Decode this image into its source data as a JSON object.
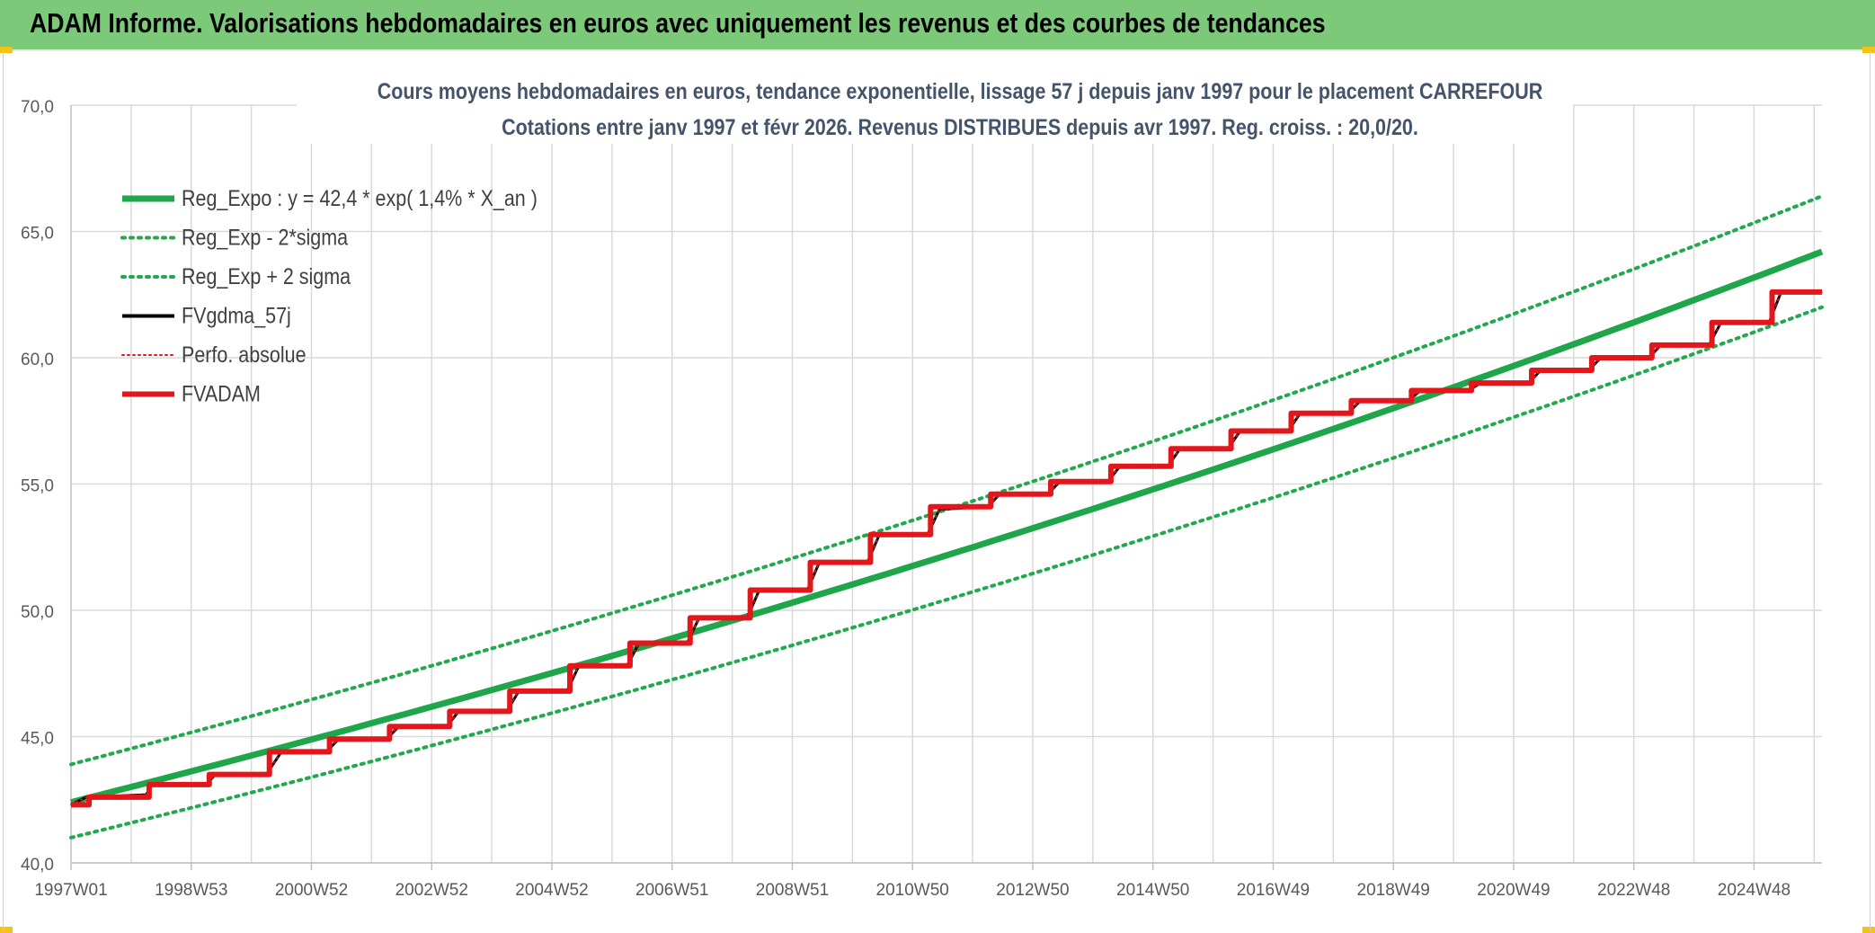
{
  "header": {
    "title": "ADAM Informe. Valorisations hebdomadaires en euros avec uniquement les revenus et des courbes de tendances"
  },
  "colors": {
    "header_bg": "#7dc97a",
    "reg_green": "#1fa64a",
    "band_green": "#22a84f",
    "red": "#e3161b",
    "black": "#000000",
    "grid": "#d9d9d9",
    "accent_yellow": "#f3c316"
  },
  "chart_data": {
    "type": "line",
    "title_line1": "Cours moyens hebdomadaires en euros, tendance exponentielle, lissage 57 j depuis janv 1997 pour le placement CARREFOUR",
    "title_line2": "Cotations entre janv 1997 et févr 2026. Revenus DISTRIBUES depuis avr 1997. Reg. croiss. : 20,0/20.",
    "xlabel": "",
    "ylabel": "",
    "ylim": [
      40,
      70
    ],
    "x_range_years": [
      1997.0,
      2026.13
    ],
    "y_ticks": [
      "40,0",
      "45,0",
      "50,0",
      "55,0",
      "60,0",
      "65,0",
      "70,0"
    ],
    "y_tick_values": [
      40,
      45,
      50,
      55,
      60,
      65,
      70
    ],
    "x_ticks": [
      {
        "label": "1997W01",
        "year": 1997.0
      },
      {
        "label": "1998W53",
        "year": 1999.0
      },
      {
        "label": "2000W52",
        "year": 2001.0
      },
      {
        "label": "2002W52",
        "year": 2003.0
      },
      {
        "label": "2004W52",
        "year": 2005.0
      },
      {
        "label": "2006W51",
        "year": 2007.0
      },
      {
        "label": "2008W51",
        "year": 2009.0
      },
      {
        "label": "2010W50",
        "year": 2011.0
      },
      {
        "label": "2012W50",
        "year": 2013.0
      },
      {
        "label": "2014W50",
        "year": 2015.0
      },
      {
        "label": "2016W49",
        "year": 2017.0
      },
      {
        "label": "2018W49",
        "year": 2019.0
      },
      {
        "label": "2020W49",
        "year": 2021.0
      },
      {
        "label": "2022W48",
        "year": 2023.0
      },
      {
        "label": "2024W48",
        "year": 2025.0
      }
    ],
    "grid": true,
    "legend_position": "top-left",
    "series": [
      {
        "name": "Reg_Expo : y = 42,4 * exp( 1,4% *  X_an )",
        "style": "solid-thick",
        "color": "#1fa64a",
        "points": [
          [
            1997.0,
            42.4
          ],
          [
            2026.13,
            64.2
          ]
        ]
      },
      {
        "name": "Reg_Exp - 2*sigma",
        "style": "dotted",
        "color": "#22a84f",
        "points": [
          [
            1997.0,
            41.0
          ],
          [
            2026.13,
            62.0
          ]
        ]
      },
      {
        "name": "Reg_Exp + 2 sigma",
        "style": "dotted",
        "color": "#22a84f",
        "points": [
          [
            1997.0,
            43.9
          ],
          [
            2026.13,
            66.4
          ]
        ]
      },
      {
        "name": "FVgdma_57j",
        "style": "solid-thin",
        "color": "#000000",
        "points": [
          [
            1997.0,
            42.3
          ],
          [
            1997.25,
            42.6
          ],
          [
            1998.25,
            42.7
          ],
          [
            1998.35,
            43.1
          ],
          [
            1999.25,
            43.1
          ],
          [
            1999.4,
            43.5
          ],
          [
            2000.25,
            43.5
          ],
          [
            2000.5,
            44.4
          ],
          [
            2001.25,
            44.4
          ],
          [
            2001.45,
            44.9
          ],
          [
            2002.25,
            44.9
          ],
          [
            2002.45,
            45.4
          ],
          [
            2003.25,
            45.4
          ],
          [
            2003.45,
            46.0
          ],
          [
            2004.25,
            46.0
          ],
          [
            2004.45,
            46.8
          ],
          [
            2005.25,
            46.8
          ],
          [
            2005.45,
            47.8
          ],
          [
            2006.25,
            47.8
          ],
          [
            2006.45,
            48.7
          ],
          [
            2007.25,
            48.7
          ],
          [
            2007.45,
            49.7
          ],
          [
            2008.25,
            49.7
          ],
          [
            2008.45,
            50.8
          ],
          [
            2009.25,
            50.8
          ],
          [
            2009.45,
            51.9
          ],
          [
            2010.25,
            51.9
          ],
          [
            2010.45,
            53.0
          ],
          [
            2011.25,
            53.0
          ],
          [
            2011.45,
            54.0
          ],
          [
            2012.25,
            54.1
          ],
          [
            2012.45,
            54.6
          ],
          [
            2013.25,
            54.6
          ],
          [
            2013.45,
            55.1
          ],
          [
            2014.25,
            55.1
          ],
          [
            2014.45,
            55.7
          ],
          [
            2015.25,
            55.7
          ],
          [
            2015.45,
            56.4
          ],
          [
            2016.25,
            56.4
          ],
          [
            2016.45,
            57.1
          ],
          [
            2017.25,
            57.1
          ],
          [
            2017.45,
            57.8
          ],
          [
            2018.25,
            57.8
          ],
          [
            2018.45,
            58.3
          ],
          [
            2019.25,
            58.3
          ],
          [
            2019.45,
            58.7
          ],
          [
            2020.25,
            58.7
          ],
          [
            2020.45,
            59.0
          ],
          [
            2021.25,
            59.0
          ],
          [
            2021.45,
            59.5
          ],
          [
            2022.25,
            59.5
          ],
          [
            2022.45,
            60.0
          ],
          [
            2023.25,
            60.0
          ],
          [
            2023.45,
            60.5
          ],
          [
            2024.25,
            60.5
          ],
          [
            2024.45,
            61.4
          ],
          [
            2025.25,
            61.4
          ],
          [
            2025.45,
            62.6
          ],
          [
            2026.13,
            62.6
          ]
        ]
      },
      {
        "name": "Perfo. absolue",
        "style": "dotted-thin",
        "color": "#e3161b",
        "points": [
          [
            1997.0,
            42.3
          ],
          [
            1997.25,
            42.6
          ],
          [
            1998.25,
            42.7
          ],
          [
            1998.35,
            43.1
          ],
          [
            1999.25,
            43.1
          ],
          [
            1999.4,
            43.5
          ],
          [
            2000.25,
            43.5
          ],
          [
            2000.5,
            44.4
          ],
          [
            2001.25,
            44.4
          ],
          [
            2001.45,
            44.9
          ],
          [
            2002.25,
            44.9
          ],
          [
            2002.45,
            45.4
          ],
          [
            2003.25,
            45.4
          ],
          [
            2003.45,
            46.0
          ],
          [
            2004.25,
            46.0
          ],
          [
            2004.45,
            46.8
          ],
          [
            2005.25,
            46.8
          ],
          [
            2005.45,
            47.8
          ],
          [
            2006.25,
            47.8
          ],
          [
            2006.45,
            48.7
          ],
          [
            2007.25,
            48.7
          ],
          [
            2007.45,
            49.7
          ],
          [
            2008.25,
            49.7
          ],
          [
            2008.45,
            50.8
          ],
          [
            2009.25,
            50.8
          ],
          [
            2009.45,
            51.9
          ],
          [
            2010.25,
            51.9
          ],
          [
            2010.45,
            53.0
          ],
          [
            2011.25,
            53.0
          ],
          [
            2011.45,
            54.0
          ],
          [
            2012.25,
            54.1
          ],
          [
            2012.45,
            54.6
          ],
          [
            2013.25,
            54.6
          ],
          [
            2013.45,
            55.1
          ],
          [
            2014.25,
            55.1
          ],
          [
            2014.45,
            55.7
          ],
          [
            2015.25,
            55.7
          ],
          [
            2015.45,
            56.4
          ],
          [
            2016.25,
            56.4
          ],
          [
            2016.45,
            57.1
          ],
          [
            2017.25,
            57.1
          ],
          [
            2017.45,
            57.8
          ],
          [
            2018.25,
            57.8
          ],
          [
            2018.45,
            58.3
          ],
          [
            2019.25,
            58.3
          ],
          [
            2019.45,
            58.7
          ],
          [
            2020.25,
            58.7
          ],
          [
            2020.45,
            59.0
          ],
          [
            2021.25,
            59.0
          ],
          [
            2021.45,
            59.5
          ],
          [
            2022.25,
            59.5
          ],
          [
            2022.45,
            60.0
          ],
          [
            2023.25,
            60.0
          ],
          [
            2023.45,
            60.5
          ],
          [
            2024.25,
            60.5
          ],
          [
            2024.45,
            61.4
          ],
          [
            2025.25,
            61.4
          ],
          [
            2025.45,
            62.6
          ],
          [
            2026.13,
            62.6
          ]
        ]
      },
      {
        "name": "FVADAM",
        "style": "step-thick",
        "color": "#e3161b",
        "points": [
          [
            1997.0,
            42.3
          ],
          [
            1997.3,
            42.3
          ],
          [
            1997.3,
            42.6
          ],
          [
            1998.3,
            42.6
          ],
          [
            1998.3,
            43.1
          ],
          [
            1999.3,
            43.1
          ],
          [
            1999.3,
            43.5
          ],
          [
            2000.3,
            43.5
          ],
          [
            2000.3,
            44.4
          ],
          [
            2001.3,
            44.4
          ],
          [
            2001.3,
            44.9
          ],
          [
            2002.3,
            44.9
          ],
          [
            2002.3,
            45.4
          ],
          [
            2003.3,
            45.4
          ],
          [
            2003.3,
            46.0
          ],
          [
            2004.3,
            46.0
          ],
          [
            2004.3,
            46.8
          ],
          [
            2005.3,
            46.8
          ],
          [
            2005.3,
            47.8
          ],
          [
            2006.3,
            47.8
          ],
          [
            2006.3,
            48.7
          ],
          [
            2007.3,
            48.7
          ],
          [
            2007.3,
            49.7
          ],
          [
            2008.3,
            49.7
          ],
          [
            2008.3,
            50.8
          ],
          [
            2009.3,
            50.8
          ],
          [
            2009.3,
            51.9
          ],
          [
            2010.3,
            51.9
          ],
          [
            2010.3,
            53.0
          ],
          [
            2011.3,
            53.0
          ],
          [
            2011.3,
            54.1
          ],
          [
            2012.3,
            54.1
          ],
          [
            2012.3,
            54.6
          ],
          [
            2013.3,
            54.6
          ],
          [
            2013.3,
            55.1
          ],
          [
            2014.3,
            55.1
          ],
          [
            2014.3,
            55.7
          ],
          [
            2015.3,
            55.7
          ],
          [
            2015.3,
            56.4
          ],
          [
            2016.3,
            56.4
          ],
          [
            2016.3,
            57.1
          ],
          [
            2017.3,
            57.1
          ],
          [
            2017.3,
            57.8
          ],
          [
            2018.3,
            57.8
          ],
          [
            2018.3,
            58.3
          ],
          [
            2019.3,
            58.3
          ],
          [
            2019.3,
            58.7
          ],
          [
            2020.3,
            58.7
          ],
          [
            2020.3,
            59.0
          ],
          [
            2021.3,
            59.0
          ],
          [
            2021.3,
            59.5
          ],
          [
            2022.3,
            59.5
          ],
          [
            2022.3,
            60.0
          ],
          [
            2023.3,
            60.0
          ],
          [
            2023.3,
            60.5
          ],
          [
            2024.3,
            60.5
          ],
          [
            2024.3,
            61.4
          ],
          [
            2025.3,
            61.4
          ],
          [
            2025.3,
            62.6
          ],
          [
            2026.13,
            62.6
          ]
        ]
      }
    ]
  }
}
